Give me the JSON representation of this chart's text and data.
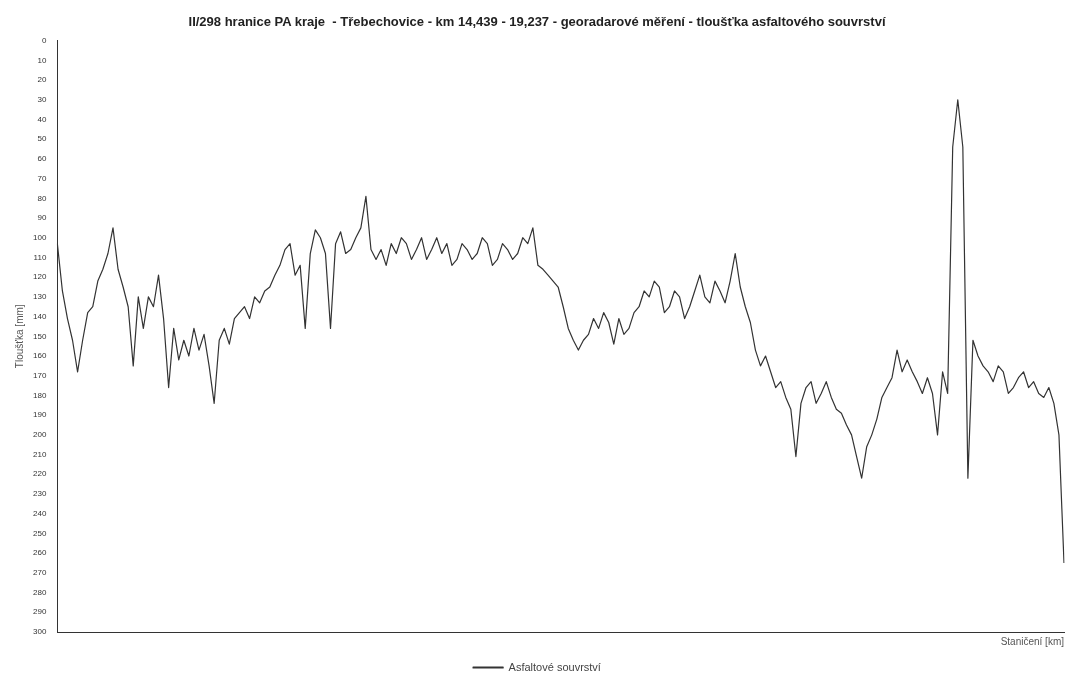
{
  "chart_data": {
    "type": "line",
    "title": "II/298 hranice PA kraje  - Třebechovice - km 14,439 - 19,237 - georadarové měření - tloušťka asfaltového souvrství",
    "xlabel": "Staničení [km]",
    "ylabel": "Tloušťka [mm]",
    "ylim": [
      300,
      0
    ],
    "yticks": [
      0,
      10,
      20,
      30,
      40,
      50,
      60,
      70,
      80,
      90,
      100,
      110,
      120,
      130,
      140,
      150,
      160,
      170,
      180,
      190,
      200,
      210,
      220,
      230,
      240,
      250,
      260,
      270,
      280,
      290,
      300
    ],
    "tick_labels": "y",
    "legend": "bottom",
    "grid": false,
    "marker": "none",
    "line_style": "solid",
    "categories": [
      null,
      null,
      null,
      null,
      null,
      null,
      null,
      null,
      null,
      null,
      null,
      null,
      null,
      null,
      null,
      null,
      null,
      null,
      null,
      null,
      null,
      null,
      null,
      null,
      null,
      null,
      null,
      null,
      null,
      null,
      null,
      null,
      null,
      null,
      null,
      null,
      null,
      null,
      null,
      null,
      null,
      null,
      null,
      null,
      null,
      null,
      null,
      null,
      null,
      null,
      null,
      null,
      null,
      null,
      null,
      null,
      null,
      null,
      null,
      null,
      null,
      null,
      null,
      null,
      null,
      null,
      null,
      null,
      null,
      null,
      null,
      null,
      null,
      null,
      null,
      null,
      null,
      null,
      null,
      null,
      null,
      null,
      null,
      null,
      null,
      null,
      null,
      null,
      null,
      null,
      null,
      null,
      null,
      null,
      null,
      null,
      null,
      null,
      null,
      null,
      null,
      null,
      null,
      null,
      null,
      null,
      null,
      null,
      null,
      null,
      null,
      null,
      null,
      null,
      null,
      null,
      null,
      null,
      null,
      null,
      null,
      null,
      null,
      null,
      null,
      null,
      null,
      null,
      null,
      null,
      null,
      null,
      null,
      null,
      null,
      null,
      null,
      null,
      null,
      null,
      null,
      null,
      null,
      null,
      null,
      null,
      null,
      null,
      null,
      null,
      null,
      null,
      null,
      null,
      null,
      null,
      null,
      null,
      null,
      null,
      null,
      null,
      null,
      null,
      null,
      null,
      null,
      null,
      null,
      null,
      null,
      null,
      null,
      null,
      null,
      null,
      null,
      null,
      null,
      null,
      null,
      null,
      null,
      null,
      null,
      null,
      null,
      null,
      null,
      null,
      null,
      null,
      null,
      null,
      null,
      null,
      null,
      null,
      null,
      null
    ],
    "series": [
      {
        "name": "Asfaltové souvrství",
        "color": "#333333",
        "values": [
          103,
          127,
          141,
          152,
          168,
          152,
          138,
          135,
          122,
          116,
          108,
          95,
          116,
          125,
          135,
          165,
          130,
          146,
          130,
          135,
          119,
          141,
          176,
          146,
          162,
          152,
          160,
          146,
          157,
          149,
          165,
          184,
          152,
          146,
          154,
          141,
          138,
          135,
          141,
          130,
          133,
          127,
          125,
          119,
          114,
          106,
          103,
          119,
          114,
          146,
          108,
          96,
          100,
          108,
          146,
          103,
          97,
          108,
          106,
          100,
          95,
          79,
          106,
          111,
          106,
          114,
          103,
          108,
          100,
          103,
          111,
          106,
          100,
          111,
          106,
          100,
          108,
          103,
          114,
          111,
          103,
          106,
          111,
          108,
          100,
          103,
          114,
          111,
          103,
          106,
          111,
          108,
          100,
          103,
          95,
          114,
          116,
          119,
          122,
          125,
          135,
          146,
          152,
          157,
          152,
          149,
          141,
          146,
          138,
          143,
          154,
          141,
          149,
          146,
          138,
          135,
          127,
          130,
          122,
          125,
          138,
          135,
          127,
          130,
          141,
          135,
          127,
          119,
          130,
          133,
          122,
          127,
          133,
          122,
          108,
          125,
          135,
          143,
          157,
          165,
          160,
          168,
          176,
          173,
          181,
          187,
          211,
          184,
          176,
          173,
          184,
          179,
          173,
          181,
          187,
          189,
          195,
          200,
          211,
          222,
          206,
          200,
          192,
          181,
          176,
          171,
          157,
          168,
          162,
          168,
          173,
          179,
          171,
          179,
          200,
          168,
          179,
          54,
          30,
          54,
          222,
          152,
          160,
          165,
          168,
          173,
          165,
          168,
          179,
          176,
          171,
          168,
          176,
          173,
          179,
          181,
          176,
          184,
          200,
          265
        ]
      }
    ]
  }
}
